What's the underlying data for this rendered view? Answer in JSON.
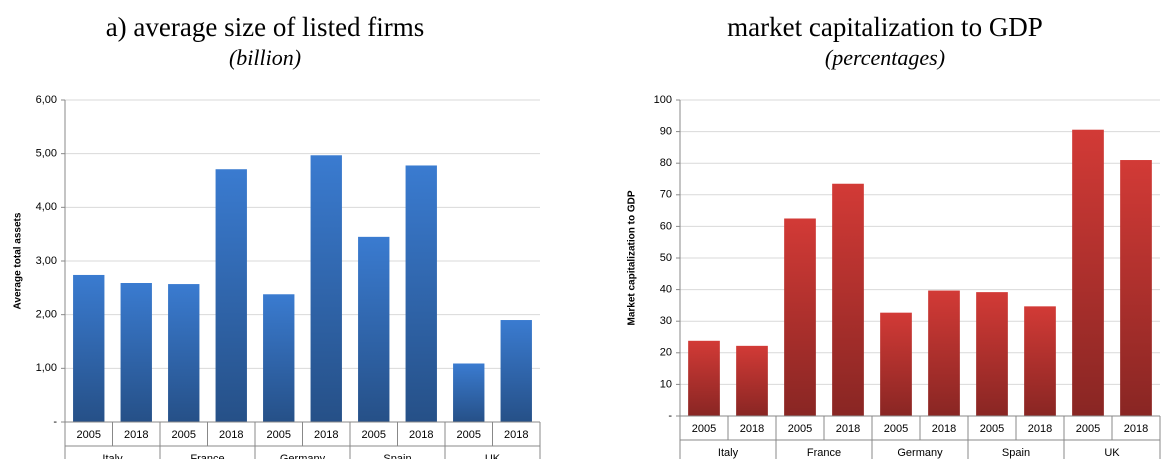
{
  "chart_data": [
    {
      "type": "bar",
      "title": "a) average size of listed firms",
      "subtitle": "(billion)",
      "y_label": "Average total assets",
      "categories": [
        "2005",
        "2018",
        "2005",
        "2018",
        "2005",
        "2018",
        "2005",
        "2018",
        "2005",
        "2018"
      ],
      "groups": [
        "Italy",
        "France",
        "Germany",
        "Spain",
        "UK"
      ],
      "values": [
        2.74,
        2.59,
        2.57,
        4.71,
        2.38,
        4.97,
        3.45,
        4.78,
        1.09,
        1.9
      ],
      "color": "#3a7bd0",
      "ylim": [
        0,
        6
      ],
      "yticks": [
        {
          "value": 0,
          "label": "-"
        },
        {
          "value": 1,
          "label": "1,00"
        },
        {
          "value": 2,
          "label": "2,00"
        },
        {
          "value": 3,
          "label": "3,00"
        },
        {
          "value": 4,
          "label": "4,00"
        },
        {
          "value": 5,
          "label": "5,00"
        },
        {
          "value": 6,
          "label": "6,00"
        }
      ],
      "grid": true
    },
    {
      "type": "bar",
      "title": "market capitalization to GDP",
      "subtitle": "(percentages)",
      "y_label": "Market capitalization to GDP",
      "categories": [
        "2005",
        "2018",
        "2005",
        "2018",
        "2005",
        "2018",
        "2005",
        "2018",
        "2005",
        "2018"
      ],
      "groups": [
        "Italy",
        "France",
        "Germany",
        "Spain",
        "UK"
      ],
      "values": [
        23.8,
        22.2,
        62.5,
        73.5,
        32.7,
        39.7,
        39.2,
        34.7,
        90.6,
        81.0
      ],
      "color": "#d23a36",
      "ylim": [
        0,
        100
      ],
      "yticks": [
        {
          "value": 0,
          "label": "-"
        },
        10,
        20,
        30,
        40,
        50,
        60,
        70,
        80,
        90,
        100
      ],
      "grid": true
    }
  ]
}
